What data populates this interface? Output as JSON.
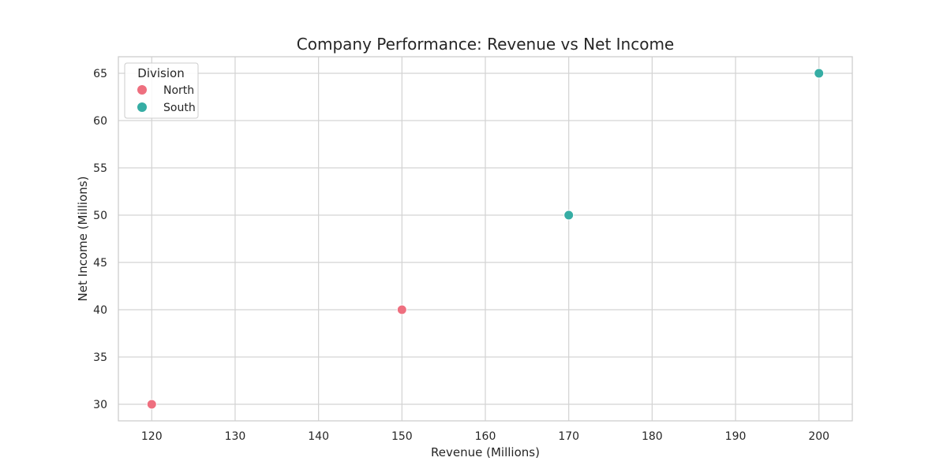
{
  "chart_data": {
    "type": "scatter",
    "title": "Company Performance: Revenue vs Net Income",
    "xlabel": "Revenue (Millions)",
    "ylabel": "Net Income (Millions)",
    "xlim": [
      116,
      204
    ],
    "ylim": [
      28.25,
      66.75
    ],
    "x_ticks": [
      120,
      130,
      140,
      150,
      160,
      170,
      180,
      190,
      200
    ],
    "y_ticks": [
      30,
      35,
      40,
      45,
      50,
      55,
      60,
      65
    ],
    "grid": true,
    "legend": {
      "title": "Division",
      "placement": "top-left"
    },
    "series": [
      {
        "name": "North",
        "color": "#ee6f7f",
        "points": [
          {
            "x": 120,
            "y": 30
          },
          {
            "x": 150,
            "y": 40
          }
        ]
      },
      {
        "name": "South",
        "color": "#36ada4",
        "points": [
          {
            "x": 170,
            "y": 50
          },
          {
            "x": 200,
            "y": 65
          }
        ]
      }
    ]
  }
}
